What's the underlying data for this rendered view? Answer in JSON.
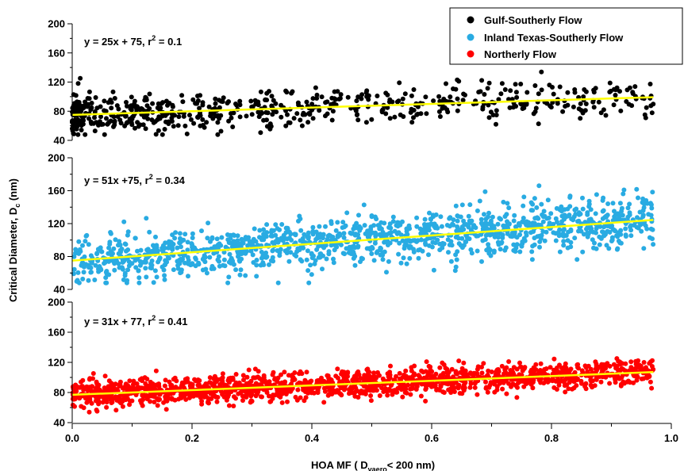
{
  "chart_data": {
    "type": "scatter",
    "x_axis": {
      "range": [
        0,
        1.0
      ],
      "ticks": [
        "0.0",
        "0.2",
        "0.4",
        "0.6",
        "0.8",
        "1.0"
      ],
      "title_main": "HOA MF ( D",
      "title_sub": "vaero",
      "title_tail": "< 200 nm)"
    },
    "y_axis": {
      "title_main": "Critical Diameter, D",
      "title_sub": "c",
      "title_tail": " (nm)"
    },
    "legend": {
      "placement": "top-right",
      "entries": [
        {
          "label": "Gulf-Southerly Flow",
          "color": "#000000"
        },
        {
          "label": "Inland Texas-Southerly Flow",
          "color": "#29abe2"
        },
        {
          "label": "Northerly Flow",
          "color": "#ff0000"
        }
      ]
    },
    "fit_line_color": "#ffff00",
    "panels": [
      {
        "series": "Gulf-Southerly Flow",
        "color": "#000000",
        "ylim": [
          40,
          200
        ],
        "yticks": [
          "40",
          "80",
          "120",
          "160",
          "200"
        ],
        "equation": "y = 25x + 75, r",
        "equation_sup": "2",
        "equation_tail": " = 0.1",
        "fit": {
          "slope": 25,
          "intercept": 75,
          "x_range": [
            0.0,
            0.97
          ]
        },
        "sample": {
          "n": 620,
          "x_max": 0.97,
          "density_power": 1.6,
          "noise_sd": 14,
          "seed": 11
        }
      },
      {
        "series": "Inland Texas-Southerly Flow",
        "color": "#29abe2",
        "ylim": [
          40,
          200
        ],
        "yticks": [
          "40",
          "80",
          "120",
          "160",
          "200"
        ],
        "equation": "y = 51x +75, r",
        "equation_sup": "2",
        "equation_tail": " = 0.34",
        "fit": {
          "slope": 51,
          "intercept": 75,
          "x_range": [
            0.0,
            0.97
          ]
        },
        "sample": {
          "n": 1300,
          "x_max": 0.97,
          "density_power": 0.95,
          "noise_sd": 15,
          "seed": 23
        }
      },
      {
        "series": "Northerly Flow",
        "color": "#ff0000",
        "ylim": [
          40,
          200
        ],
        "yticks": [
          "40",
          "80",
          "120",
          "160",
          "200"
        ],
        "equation": "y = 31x + 77, r",
        "equation_sup": "2",
        "equation_tail": " = 0.41",
        "fit": {
          "slope": 31,
          "intercept": 77,
          "x_range": [
            0.0,
            0.97
          ]
        },
        "sample": {
          "n": 1500,
          "x_max": 0.97,
          "density_power": 1.15,
          "noise_sd": 9,
          "seed": 37
        }
      }
    ]
  }
}
